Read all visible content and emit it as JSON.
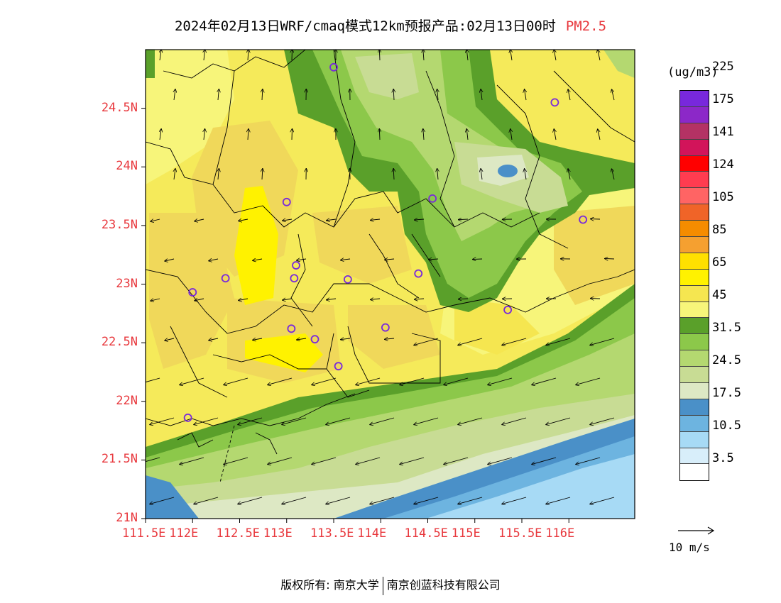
{
  "title": {
    "main": "2024年02月13日WRF/cmaq模式12km预报产品:02月13日00时",
    "pollutant": "PM2.5"
  },
  "axes": {
    "lat_labels": [
      "24.5N",
      "24N",
      "23.5N",
      "23N",
      "22.5N",
      "22N",
      "21.5N",
      "21N"
    ],
    "lat_values": [
      24.5,
      24.0,
      23.5,
      23.0,
      22.5,
      22.0,
      21.5,
      21.0
    ],
    "lon_labels": [
      "111.5E",
      "112E",
      "112.5E",
      "113E",
      "113.5E",
      "114E",
      "114.5E",
      "115E",
      "115.5E",
      "116E"
    ],
    "lon_values": [
      111.5,
      112.0,
      112.5,
      113.0,
      113.5,
      114.0,
      114.5,
      115.0,
      115.5,
      116.0
    ],
    "lon_range": [
      111.5,
      116.7
    ],
    "lat_range": [
      21.0,
      25.0
    ]
  },
  "legend": {
    "unit": "(ug/m3)",
    "colors": [
      "#ffffff",
      "#d8eefa",
      "#a7daf5",
      "#6db4e0",
      "#4a90c8",
      "#dde8c4",
      "#c8dc94",
      "#b4d870",
      "#8cc84a",
      "#5aa02a",
      "#f7f57a",
      "#f5e650",
      "#fff200",
      "#ffe000",
      "#f5a030",
      "#f58c00",
      "#f06428",
      "#ff6464",
      "#ff3c50",
      "#ff0000",
      "#d2145a",
      "#b43264",
      "#8c28c8",
      "#7828dc"
    ],
    "tick_labels": [
      "3.5",
      "10.5",
      "17.5",
      "24.5",
      "31.5",
      "45",
      "65",
      "85",
      "105",
      "124",
      "141",
      "175",
      "225"
    ]
  },
  "stations": [
    {
      "lon": 113.5,
      "lat": 24.85
    },
    {
      "lon": 115.85,
      "lat": 24.55
    },
    {
      "lon": 113.0,
      "lat": 23.7
    },
    {
      "lon": 114.55,
      "lat": 23.73
    },
    {
      "lon": 116.15,
      "lat": 23.55
    },
    {
      "lon": 112.35,
      "lat": 23.05
    },
    {
      "lon": 112.0,
      "lat": 22.93
    },
    {
      "lon": 113.1,
      "lat": 23.16
    },
    {
      "lon": 113.08,
      "lat": 23.05
    },
    {
      "lon": 113.65,
      "lat": 23.04
    },
    {
      "lon": 114.4,
      "lat": 23.09
    },
    {
      "lon": 115.35,
      "lat": 22.78
    },
    {
      "lon": 113.05,
      "lat": 22.62
    },
    {
      "lon": 113.3,
      "lat": 22.53
    },
    {
      "lon": 114.05,
      "lat": 22.63
    },
    {
      "lon": 113.55,
      "lat": 22.3
    },
    {
      "lon": 111.95,
      "lat": 21.86
    }
  ],
  "reference_vector": {
    "label": "10 m/s"
  },
  "copyright": {
    "left": "版权所有: 南京大学",
    "right": "南京创蓝科技有限公司"
  }
}
